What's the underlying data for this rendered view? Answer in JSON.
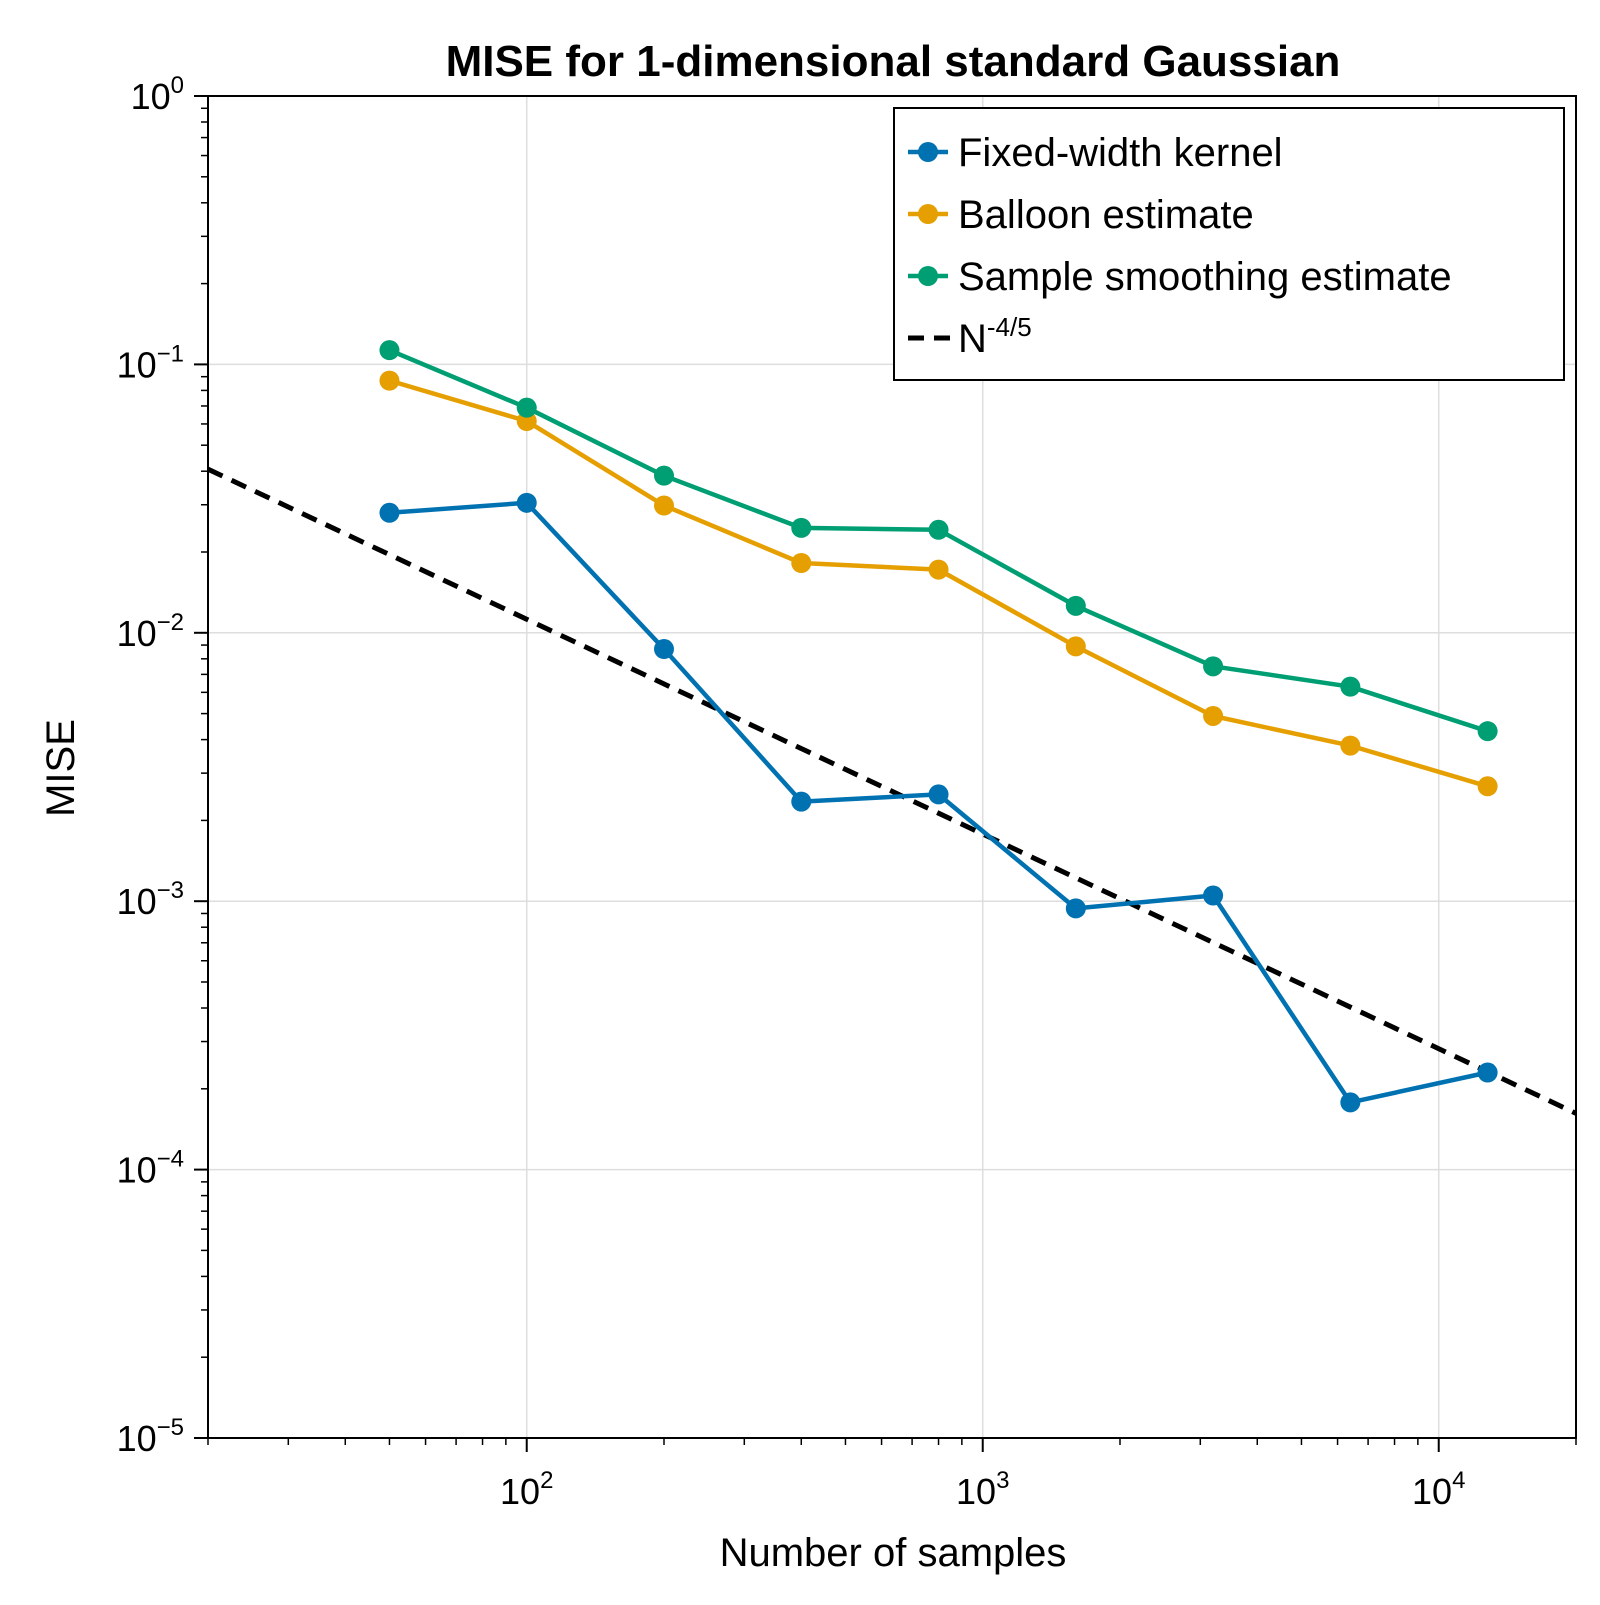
{
  "chart_data": {
    "type": "line",
    "title": "MISE for 1-dimensional standard Gaussian",
    "xlabel": "Number of samples",
    "ylabel": "MISE",
    "xscale": "log",
    "yscale": "log",
    "xlim": [
      20,
      20000
    ],
    "ylim": [
      1e-05,
      1
    ],
    "grid": true,
    "legend_position": "top-right",
    "x_ticks": [
      {
        "value": 100,
        "base": "10",
        "exp": "2"
      },
      {
        "value": 1000,
        "base": "10",
        "exp": "3"
      },
      {
        "value": 10000,
        "base": "10",
        "exp": "4"
      }
    ],
    "y_ticks": [
      {
        "value": 1,
        "base": "10",
        "exp": "0"
      },
      {
        "value": 0.1,
        "base": "10",
        "exp": "−1"
      },
      {
        "value": 0.01,
        "base": "10",
        "exp": "−2"
      },
      {
        "value": 0.001,
        "base": "10",
        "exp": "−3"
      },
      {
        "value": 0.0001,
        "base": "10",
        "exp": "−4"
      },
      {
        "value": 1e-05,
        "base": "10",
        "exp": "−5"
      }
    ],
    "x": [
      50,
      100,
      200,
      400,
      800,
      1600,
      3200,
      6400,
      12800
    ],
    "series": [
      {
        "name": "Fixed-width kernel",
        "color": "#0072b2",
        "values": [
          0.028,
          0.0305,
          0.0087,
          0.00235,
          0.0025,
          0.00094,
          0.00105,
          0.000178,
          0.00023
        ]
      },
      {
        "name": "Balloon estimate",
        "color": "#e69f00",
        "values": [
          0.087,
          0.0615,
          0.0298,
          0.0182,
          0.0172,
          0.0089,
          0.0049,
          0.0038,
          0.00268
        ]
      },
      {
        "name": "Sample smoothing estimate",
        "color": "#009e73",
        "values": [
          0.113,
          0.069,
          0.0385,
          0.0246,
          0.0242,
          0.0126,
          0.0075,
          0.0063,
          0.0043
        ]
      }
    ],
    "reference_line": {
      "name": "N",
      "name_superscript": "-4/5",
      "style": "dashed",
      "color": "#000000",
      "x": [
        20,
        20000
      ],
      "y": [
        0.0407,
        0.000162
      ]
    }
  }
}
